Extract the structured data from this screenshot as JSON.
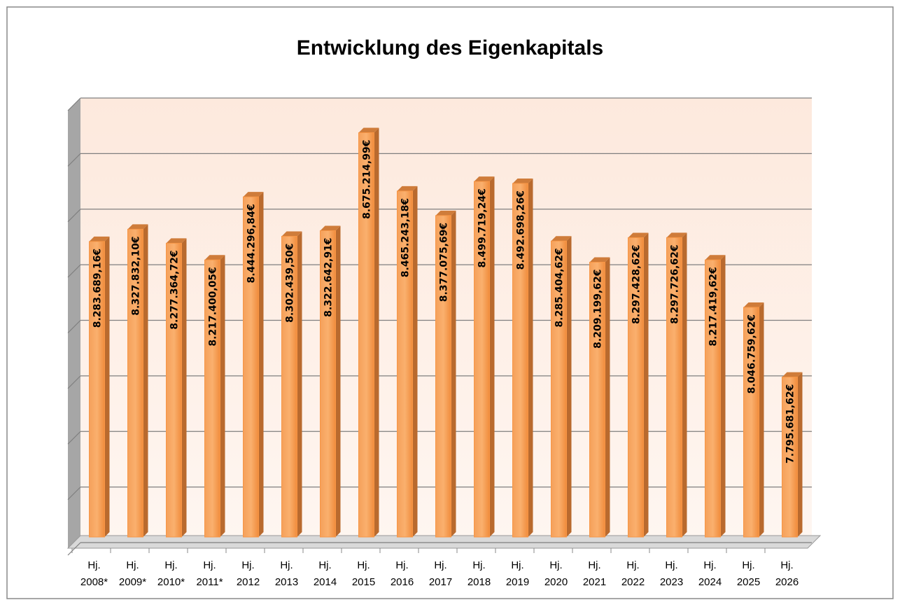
{
  "chart_data": {
    "type": "bar",
    "title": "Entwicklung des Eigenkapitals",
    "categories": [
      "Hj. 2008*",
      "Hj. 2009*",
      "Hj. 2010*",
      "Hj. 2011*",
      "Hj. 2012",
      "Hj. 2013",
      "Hj. 2014",
      "Hj. 2015",
      "Hj. 2016",
      "Hj. 2017",
      "Hj. 2018",
      "Hj. 2019",
      "Hj. 2020",
      "Hj. 2021",
      "Hj. 2022",
      "Hj. 2023",
      "Hj. 2024",
      "Hj. 2025",
      "Hj. 2026"
    ],
    "values": [
      8283689.16,
      8327832.1,
      8277364.72,
      8217400.05,
      8444296.84,
      8302439.5,
      8322642.91,
      8675214.99,
      8465243.18,
      8377075.69,
      8499719.24,
      8492698.26,
      8285404.62,
      8209199.62,
      8297428.62,
      8297726.62,
      8217419.62,
      8046759.62,
      7795681.62
    ],
    "value_labels": [
      "8.283.689,16€",
      "8.327.832,10€",
      "8.277.364,72€",
      "8.217.400,05€",
      "8.444.296,84€",
      "8.302.439,50€",
      "8.322.642,91€",
      "8.675.214,99€",
      "8.465.243,18€",
      "8.377.075,69€",
      "8.499.719,24€",
      "8.492.698,26€",
      "8.285.404,62€",
      "8.209.199,62€",
      "8.297.428,62€",
      "8.297.726,62€",
      "8.217.419,62€",
      "8.046.759,62€",
      "7.795.681,62€"
    ],
    "color": "#f79646",
    "ylim": [
      7200000,
      8800000
    ],
    "yticks": [
      7200000,
      7400000,
      7600000,
      7800000,
      8000000,
      8200000,
      8400000,
      8600000,
      8800000
    ],
    "grid": true
  }
}
